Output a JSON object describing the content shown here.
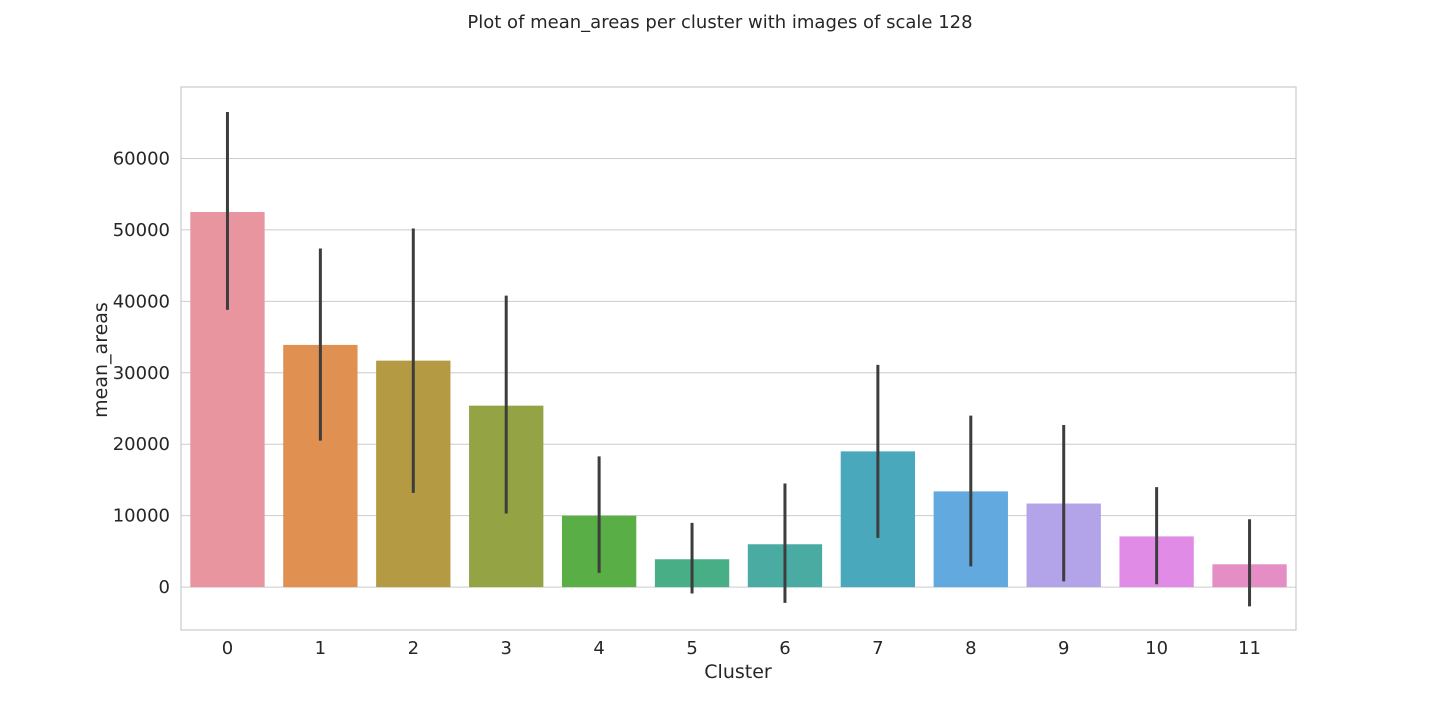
{
  "chart_data": {
    "type": "bar",
    "title": "Plot of mean_areas per cluster with images of scale 128",
    "xlabel": "Cluster",
    "ylabel": "mean_areas",
    "categories": [
      "0",
      "1",
      "2",
      "3",
      "4",
      "5",
      "6",
      "7",
      "8",
      "9",
      "10",
      "11"
    ],
    "values": [
      52500,
      33900,
      31700,
      25400,
      10000,
      3900,
      6000,
      19000,
      13400,
      11700,
      7100,
      3200
    ],
    "error_low": [
      38800,
      20500,
      13200,
      10300,
      2000,
      -900,
      -2200,
      6900,
      2900,
      800,
      400,
      -2700
    ],
    "error_high": [
      66500,
      47400,
      50200,
      40800,
      18300,
      9000,
      14500,
      31100,
      24000,
      22700,
      14000,
      9500
    ],
    "colors": [
      "#e8959f",
      "#e09050",
      "#b59a44",
      "#94a344",
      "#5aae46",
      "#47ae86",
      "#49aba2",
      "#4aa8bc",
      "#62a9df",
      "#b3a4ea",
      "#e08ce6",
      "#e58ec5"
    ],
    "yticks": [
      0,
      10000,
      20000,
      30000,
      40000,
      50000,
      60000
    ],
    "ylim": [
      -6000,
      70000
    ],
    "grid": true,
    "grid_axis": "y",
    "legend": "none"
  }
}
